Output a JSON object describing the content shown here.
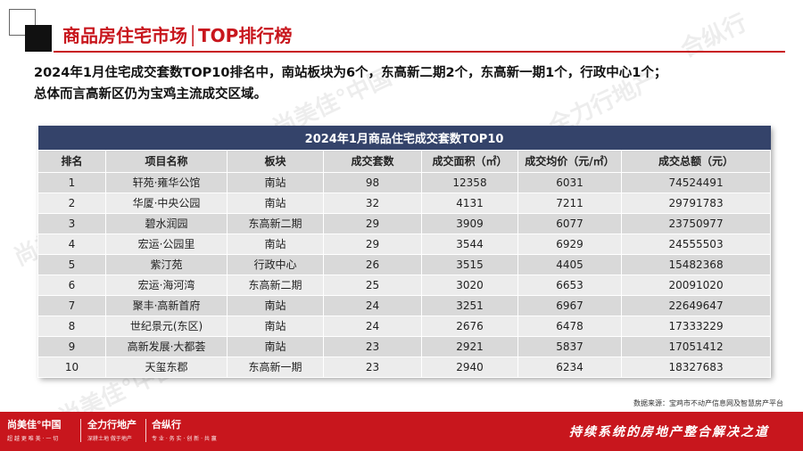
{
  "header": {
    "title": "商品房住宅市场│TOP排行榜"
  },
  "summary": {
    "line1": "2024年1月住宅成交套数TOP10排名中，南站板块为6个，东高新二期2个，东高新一期1个，行政中心1个；",
    "line2": "总体而言高新区仍为宝鸡主流成交区域。"
  },
  "table": {
    "caption": "2024年1月商品住宅成交套数TOP10",
    "headers": [
      "排名",
      "项目名称",
      "板块",
      "成交套数",
      "成交面积（㎡）",
      "成交均价（元/㎡）",
      "成交总额（元）"
    ],
    "rows": [
      [
        "1",
        "轩苑·雍华公馆",
        "南站",
        "98",
        "12358",
        "6031",
        "74524491"
      ],
      [
        "2",
        "华厦·中央公园",
        "南站",
        "32",
        "4131",
        "7211",
        "29791783"
      ],
      [
        "3",
        "碧水润园",
        "东高新二期",
        "29",
        "3909",
        "6077",
        "23750977"
      ],
      [
        "4",
        "宏运·公园里",
        "南站",
        "29",
        "3544",
        "6929",
        "24555503"
      ],
      [
        "5",
        "紫汀苑",
        "行政中心",
        "26",
        "3515",
        "4405",
        "15482368"
      ],
      [
        "6",
        "宏运·海河湾",
        "东高新二期",
        "25",
        "3020",
        "6653",
        "20091020"
      ],
      [
        "7",
        "聚丰·高新首府",
        "南站",
        "24",
        "3251",
        "6967",
        "22649647"
      ],
      [
        "8",
        "世纪景元(东区)",
        "南站",
        "24",
        "2676",
        "6478",
        "17333229"
      ],
      [
        "9",
        "高新发展·大都荟",
        "南站",
        "23",
        "2921",
        "5837",
        "17051412"
      ],
      [
        "10",
        "天玺东郡",
        "东高新一期",
        "23",
        "2940",
        "6234",
        "18327683"
      ]
    ]
  },
  "source": "数据来源：宝鸡市不动产信息网及智慧房产平台",
  "footer": {
    "brand1": "尚美佳°中国",
    "brand1_sub": "超 越 更 唯 美 · 一 切",
    "brand2": "全力行地产",
    "brand2_sub": "深耕土地  做于地产",
    "brand3": "合纵行",
    "brand3_sub": "专 业 · 务 实 · 创 新 · 共 赢",
    "slogan": "持续系统的房地产整合解决之道"
  },
  "watermarks": [
    "尚美佳°中国",
    "全力行地产",
    "合纵行"
  ],
  "colors": {
    "accent_red": "#c8161d",
    "table_header_navy": "#34436a",
    "row_gray": "#d9d9d9",
    "row_light": "#ececec"
  }
}
